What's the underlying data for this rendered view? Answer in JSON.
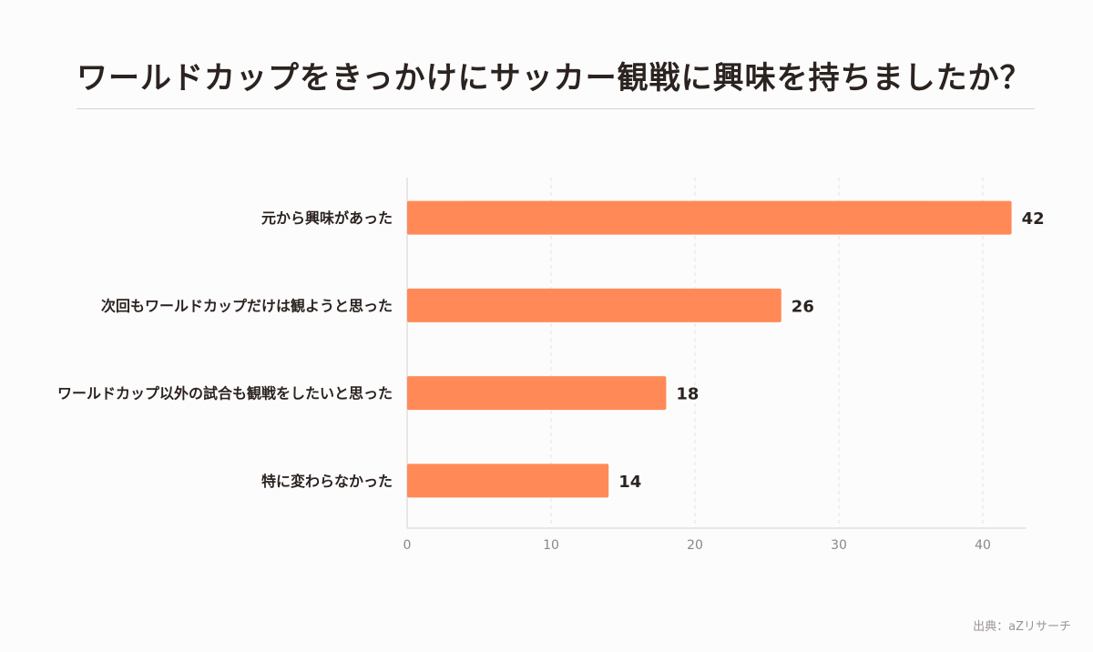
{
  "title": "ワールドカップをきっかけにサッカー観戦に興味を持ちましたか？",
  "source": "出典：aZリサーチ",
  "colors": {
    "bar": "#ff8a58",
    "grid": "#e6e2e0",
    "axis": "#d5d0ce",
    "text": "#2b2320",
    "tick": "#8c8786"
  },
  "chart_data": {
    "type": "bar",
    "orientation": "horizontal",
    "categories": [
      "元から興味があった",
      "次回もワールドカップだけは観ようと思った",
      "ワールドカップ以外の試合も観戦をしたいと思った",
      "特に変わらなかった"
    ],
    "values": [
      42,
      26,
      18,
      14
    ],
    "data_labels": [
      "42",
      "26",
      "18",
      "14"
    ],
    "xlim": [
      0,
      43
    ],
    "xticks": [
      0,
      10,
      20,
      30,
      40
    ],
    "grid": "vertical-dashed"
  }
}
